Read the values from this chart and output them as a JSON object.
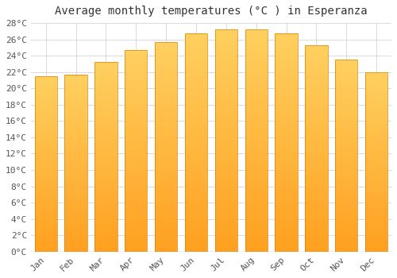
{
  "title": "Average monthly temperatures (°C ) in Esperanza",
  "months": [
    "Jan",
    "Feb",
    "Mar",
    "Apr",
    "May",
    "Jun",
    "Jul",
    "Aug",
    "Sep",
    "Oct",
    "Nov",
    "Dec"
  ],
  "values": [
    21.5,
    21.7,
    23.2,
    24.7,
    25.7,
    26.7,
    27.2,
    27.2,
    26.7,
    25.3,
    23.5,
    22.0
  ],
  "bar_color_top": "#FFC200",
  "bar_color_bottom": "#FFA020",
  "bar_edge_color": "#E08000",
  "background_color": "#ffffff",
  "grid_color": "#cccccc",
  "ylim": [
    0,
    28
  ],
  "ytick_step": 2,
  "title_fontsize": 10,
  "tick_fontsize": 8,
  "tick_font_family": "monospace",
  "bar_width": 0.75
}
